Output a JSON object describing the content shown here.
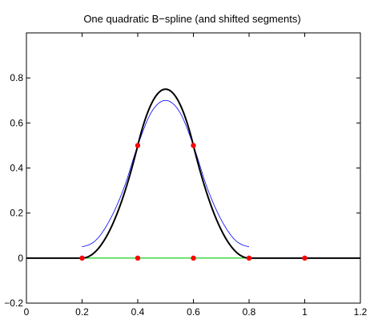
{
  "chart_data": {
    "type": "line",
    "title": "One quadratic B−spline (and shifted segments)",
    "xlabel": "",
    "ylabel": "",
    "xlim": [
      0,
      1.2
    ],
    "ylim": [
      -0.2,
      1.0
    ],
    "xticks": [
      0,
      0.2,
      0.4,
      0.6,
      0.8,
      1,
      1.2
    ],
    "xtick_labels": [
      "0",
      "0.2",
      "0.4",
      "0.6",
      "0.8",
      "1",
      "1.2"
    ],
    "yticks": [
      -0.2,
      0,
      0.2,
      0.4,
      0.6,
      0.8
    ],
    "ytick_labels": [
      "−0.2",
      "0",
      "0.2",
      "0.4",
      "0.6",
      "0.8"
    ],
    "grid": false,
    "series": [
      {
        "kind": "b-spline",
        "color": "#000000",
        "knots": [
          0.2,
          0.4,
          0.6,
          0.8
        ],
        "x": [
          0.0,
          0.2,
          0.25,
          0.3,
          0.35,
          0.4,
          0.45,
          0.5,
          0.55,
          0.6,
          0.65,
          0.7,
          0.75,
          0.8,
          1.2
        ],
        "y": [
          0.0,
          0.0,
          0.031,
          0.125,
          0.281,
          0.5,
          0.688,
          0.75,
          0.688,
          0.5,
          0.281,
          0.125,
          0.031,
          0.0,
          0.0
        ]
      },
      {
        "kind": "shifted-segments",
        "color": "#0000ff",
        "x": [
          0.2,
          0.25,
          0.3,
          0.35,
          0.4,
          0.45,
          0.5,
          0.55,
          0.6,
          0.65,
          0.7,
          0.75,
          0.8
        ],
        "y": [
          0.05,
          0.08,
          0.17,
          0.31,
          0.5,
          0.65,
          0.7,
          0.65,
          0.5,
          0.31,
          0.17,
          0.08,
          0.05
        ]
      },
      {
        "kind": "baseline-segment",
        "color": "#00cc00",
        "x": [
          0.2,
          0.8
        ],
        "y": [
          0,
          0
        ]
      },
      {
        "kind": "points",
        "color": "#ff0000",
        "x": [
          0.2,
          0.4,
          0.6,
          0.8,
          1.0,
          0.4,
          0.6
        ],
        "y": [
          0,
          0,
          0,
          0,
          0,
          0.5,
          0.5
        ]
      }
    ]
  }
}
